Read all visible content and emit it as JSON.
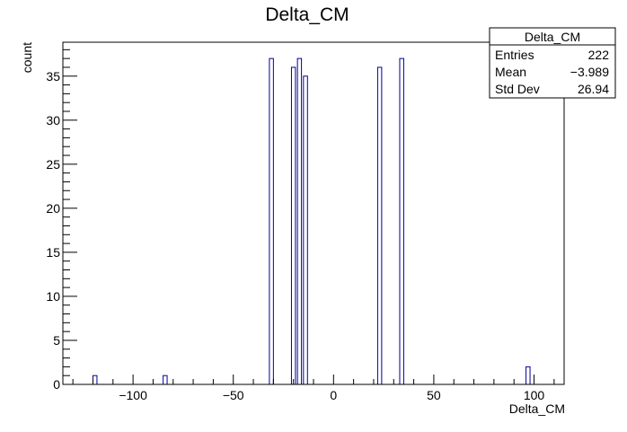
{
  "chart_data": {
    "type": "bar",
    "title": "Delta_CM",
    "xlabel": "Delta_CM",
    "ylabel": "count",
    "xlim": [
      -135,
      115
    ],
    "ylim": [
      0,
      38.85
    ],
    "bin_width": 2.0,
    "grid": false,
    "line_color": "#000099",
    "bins": [
      {
        "x": -119,
        "value": 1
      },
      {
        "x": -84,
        "value": 1
      },
      {
        "x": -31,
        "value": 37
      },
      {
        "x": -20,
        "value": 36
      },
      {
        "x": -17,
        "value": 37
      },
      {
        "x": -14,
        "value": 35
      },
      {
        "x": 23,
        "value": 36
      },
      {
        "x": 34,
        "value": 37
      },
      {
        "x": 97,
        "value": 2
      }
    ],
    "x_ticks": [
      -100,
      -50,
      0,
      50,
      100
    ],
    "x_tick_labels": [
      "−100",
      "−50",
      "0",
      "50",
      "100"
    ],
    "y_ticks": [
      0,
      5,
      10,
      15,
      20,
      25,
      30,
      35
    ],
    "y_tick_labels": [
      "0",
      "5",
      "10",
      "15",
      "20",
      "25",
      "30",
      "35"
    ],
    "stats_box": {
      "title": "Delta_CM",
      "rows": [
        {
          "label": "Entries",
          "value": "222"
        },
        {
          "label": "Mean",
          "value": "−3.989"
        },
        {
          "label": "Std Dev",
          "value": "26.94"
        }
      ]
    }
  }
}
